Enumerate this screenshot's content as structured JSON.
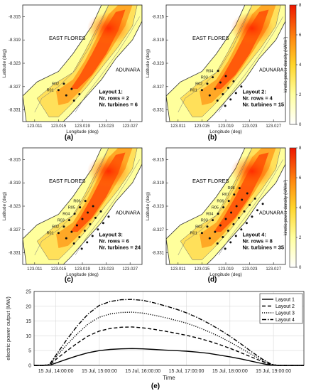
{
  "chart_data": [
    {
      "type": "heatmap",
      "panel_label": "(a)",
      "xlabel": "Longitude (deg)",
      "ylabel": "Latitude (deg)",
      "xticks": [
        "123.011",
        "123.015",
        "123.019",
        "123.023",
        "123.027"
      ],
      "yticks": [
        "-8.315",
        "-8.319",
        "-8.323",
        "-8.327",
        "-8.331"
      ],
      "xlim": [
        123.009,
        123.029
      ],
      "ylim": [
        -8.3325,
        -8.3115
      ],
      "region_labels": [
        "EAST FLORES",
        "ADUNARA"
      ],
      "layout_text": [
        "Layout 1:",
        "Nr. rows = 2",
        "Nr. turbines = 6"
      ],
      "row_labels": [
        "R01",
        "R02"
      ],
      "colorbar": null
    },
    {
      "type": "heatmap",
      "panel_label": "(b)",
      "xlabel": "Longitude (deg)",
      "ylabel": "Latitude (deg)",
      "xticks": [
        "123.011",
        "123.015",
        "123.019",
        "123.023",
        "123.027"
      ],
      "yticks": [
        "-8.315",
        "-8.319",
        "-8.323",
        "-8.327",
        "-8.331"
      ],
      "xlim": [
        123.009,
        123.029
      ],
      "ylim": [
        -8.3325,
        -8.3115
      ],
      "region_labels": [
        "EAST FLORES",
        "ADUNARA"
      ],
      "layout_text": [
        "Layout 2:",
        "Nr. rows = 4",
        "Nr. turbines = 15"
      ],
      "row_labels": [
        "R01",
        "R02",
        "R03",
        "R04"
      ],
      "colorbar": {
        "label": "kinetic power density (kW/m²)",
        "ticks": [
          "0",
          "2",
          "4",
          "6",
          "8"
        ],
        "range": [
          0,
          8
        ]
      }
    },
    {
      "type": "heatmap",
      "panel_label": "(c)",
      "xlabel": "Longitude (deg)",
      "ylabel": "Latitude (deg)",
      "xticks": [
        "123.011",
        "123.015",
        "123.019",
        "123.023",
        "123.027"
      ],
      "yticks": [
        "-8.315",
        "-8.319",
        "-8.323",
        "-8.327",
        "-8.331"
      ],
      "xlim": [
        123.009,
        123.029
      ],
      "ylim": [
        -8.3325,
        -8.3115
      ],
      "region_labels": [
        "EAST FLORES",
        "ADUNARA"
      ],
      "layout_text": [
        "Layout 3:",
        "Nr. rows = 6",
        "Nr. turbines = 24"
      ],
      "row_labels": [
        "R01",
        "R02",
        "R03",
        "R04",
        "R05",
        "R06"
      ],
      "colorbar": null
    },
    {
      "type": "heatmap",
      "panel_label": "(d)",
      "xlabel": "Longitude (deg)",
      "ylabel": "Latitude (deg)",
      "xticks": [
        "123.011",
        "123.015",
        "123.019",
        "123.023",
        "123.027"
      ],
      "yticks": [
        "-8.315",
        "-8.319",
        "-8.323",
        "-8.327",
        "-8.331"
      ],
      "xlim": [
        123.009,
        123.029
      ],
      "ylim": [
        -8.3325,
        -8.3115
      ],
      "region_labels": [
        "EAST FLORES",
        "ADUNARA"
      ],
      "layout_text": [
        "Layout 4:",
        "Nr. rows = 8",
        "Nr. turbines = 35"
      ],
      "row_labels": [
        "R01",
        "R02",
        "R03",
        "R04",
        "R05",
        "R06",
        "R07",
        "R08"
      ],
      "colorbar": {
        "label": "kinetic power density (kW/m²)",
        "ticks": [
          "0",
          "2",
          "4",
          "6",
          "8"
        ],
        "range": [
          0,
          8
        ]
      }
    },
    {
      "type": "line",
      "panel_label": "(e)",
      "xlabel": "Time",
      "ylabel": "electric power output (MW)",
      "ylim": [
        0,
        25
      ],
      "yticks": [
        "0",
        "5",
        "10",
        "15",
        "20",
        "25"
      ],
      "x_hours": [
        13.5,
        19.7
      ],
      "xticks": [
        {
          "label": "15 Jul, 14:00:00",
          "hour": 14
        },
        {
          "label": "15 Jul, 15:00:00",
          "hour": 15
        },
        {
          "label": "15 Jul, 16:00:00",
          "hour": 16
        },
        {
          "label": "15 Jul, 17:00:00",
          "hour": 17
        },
        {
          "label": "15 Jul, 18:00:00",
          "hour": 18
        },
        {
          "label": "15 Jul, 19:00:00",
          "hour": 19
        }
      ],
      "grid": true,
      "legend": "top-right",
      "hours": [
        13.5,
        13.7,
        13.85,
        14.0,
        14.25,
        14.5,
        14.75,
        15.0,
        15.25,
        15.5,
        15.75,
        16.0,
        16.25,
        16.5,
        16.75,
        17.0,
        17.25,
        17.5,
        17.75,
        18.0,
        18.25,
        18.5,
        18.75,
        18.95,
        19.1,
        19.3,
        19.5,
        19.7
      ],
      "series": [
        {
          "name": "Layout 1",
          "dash": "solid",
          "values": [
            0,
            0,
            0.05,
            0.8,
            2.1,
            3.3,
            4.3,
            5.0,
            5.4,
            5.6,
            5.7,
            5.6,
            5.4,
            5.2,
            5.0,
            4.8,
            4.5,
            4.1,
            3.5,
            2.9,
            2.2,
            1.4,
            0.6,
            0.05,
            0,
            0,
            0,
            0
          ]
        },
        {
          "name": "Layout 2",
          "dash": "dashed",
          "values": [
            0,
            0,
            0.1,
            2.0,
            4.9,
            7.6,
            10.0,
            11.6,
            12.5,
            12.9,
            13.0,
            12.7,
            12.2,
            11.6,
            10.9,
            10.2,
            9.3,
            8.3,
            7.1,
            5.8,
            4.3,
            2.8,
            1.3,
            0.2,
            0,
            0,
            0,
            0
          ]
        },
        {
          "name": "Layout 3",
          "dash": "dotted",
          "values": [
            0,
            0,
            0.2,
            2.8,
            7.0,
            10.8,
            14.1,
            16.3,
            17.4,
            17.9,
            18.0,
            17.7,
            17.0,
            16.2,
            15.3,
            14.3,
            13.0,
            11.5,
            9.8,
            7.9,
            5.8,
            3.7,
            1.7,
            0.3,
            0,
            0,
            0,
            0
          ]
        },
        {
          "name": "Layout 4",
          "dash": "dashdot",
          "values": [
            0,
            0,
            0.3,
            3.4,
            8.7,
            13.5,
            17.5,
            20.3,
            21.6,
            22.2,
            22.3,
            22.0,
            21.2,
            20.2,
            19.1,
            17.8,
            16.2,
            14.3,
            12.2,
            9.9,
            7.3,
            4.6,
            2.1,
            0.4,
            0,
            0,
            0,
            0
          ]
        }
      ]
    }
  ]
}
